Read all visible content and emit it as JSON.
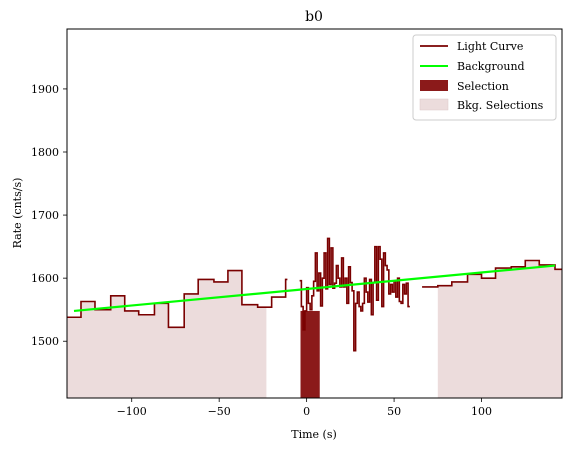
{
  "chart_data": {
    "type": "line",
    "title": "b0",
    "xlabel": "Time (s)",
    "ylabel": "Rate (cnts/s)",
    "xlim": [
      -137,
      146
    ],
    "ylim": [
      1410,
      1995
    ],
    "xticks": [
      -100,
      -50,
      0,
      50,
      100
    ],
    "xtick_labels": [
      "−100",
      "−50",
      "0",
      "50",
      "100"
    ],
    "yticks": [
      1500,
      1600,
      1700,
      1800,
      1900
    ],
    "ytick_labels": [
      "1500",
      "1600",
      "1700",
      "1800",
      "1900"
    ],
    "legend_position": "top-right",
    "colors": {
      "light_curve": "#7a0000",
      "background": "#00ff00",
      "selection": "#8b1a1a",
      "bkg_selection": "#ecdcdc"
    },
    "series": [
      {
        "name": "Light Curve",
        "kind": "step",
        "points": [
          [
            -137,
            1538
          ],
          [
            -129,
            1563
          ],
          [
            -121,
            1550
          ],
          [
            -112,
            1572
          ],
          [
            -104,
            1548
          ],
          [
            -96,
            1542
          ],
          [
            -87,
            1560
          ],
          [
            -79,
            1522
          ],
          [
            -70,
            1575
          ],
          [
            -62,
            1598
          ],
          [
            -53,
            1594
          ],
          [
            -45,
            1612
          ],
          [
            -37,
            1558
          ],
          [
            -28,
            1554
          ],
          [
            -20,
            1570
          ],
          [
            -12,
            1598
          ]
        ],
        "x_end": -11
      },
      {
        "name": "Light Curve",
        "kind": "step",
        "points": [
          [
            -4,
            1596
          ],
          [
            -3,
            1555
          ],
          [
            -2,
            1518
          ],
          [
            -1,
            1548
          ],
          [
            0,
            1585
          ],
          [
            1,
            1560
          ],
          [
            2,
            1550
          ],
          [
            3,
            1572
          ],
          [
            4,
            1595
          ],
          [
            5,
            1640
          ],
          [
            6,
            1580
          ],
          [
            7,
            1608
          ],
          [
            8,
            1556
          ],
          [
            9,
            1600
          ],
          [
            10,
            1640
          ],
          [
            11,
            1583
          ],
          [
            12,
            1663
          ],
          [
            13,
            1590
          ],
          [
            14,
            1648
          ],
          [
            15,
            1584
          ],
          [
            16,
            1592
          ],
          [
            17,
            1620
          ],
          [
            18,
            1600
          ],
          [
            19,
            1586
          ],
          [
            20,
            1632
          ],
          [
            21,
            1586
          ],
          [
            22,
            1600
          ],
          [
            23,
            1560
          ],
          [
            24,
            1618
          ],
          [
            25,
            1593
          ],
          [
            26,
            1580
          ],
          [
            27,
            1485
          ],
          [
            28,
            1560
          ],
          [
            29,
            1578
          ],
          [
            30,
            1555
          ],
          [
            31,
            1548
          ],
          [
            32,
            1560
          ],
          [
            33,
            1600
          ],
          [
            34,
            1578
          ],
          [
            35,
            1562
          ],
          [
            36,
            1598
          ],
          [
            37,
            1542
          ],
          [
            38,
            1593
          ],
          [
            39,
            1650
          ],
          [
            40,
            1565
          ],
          [
            41,
            1650
          ],
          [
            42,
            1630
          ],
          [
            43,
            1555
          ],
          [
            44,
            1640
          ],
          [
            45,
            1620
          ],
          [
            46,
            1613
          ],
          [
            47,
            1575
          ],
          [
            48,
            1590
          ],
          [
            49,
            1578
          ],
          [
            50,
            1595
          ],
          [
            51,
            1570
          ],
          [
            52,
            1600
          ],
          [
            53,
            1563
          ],
          [
            54,
            1560
          ],
          [
            55,
            1590
          ],
          [
            56,
            1575
          ],
          [
            57,
            1592
          ],
          [
            58,
            1555
          ]
        ],
        "x_end": 59
      },
      {
        "name": "Light Curve",
        "kind": "step",
        "points": [
          [
            66,
            1586
          ],
          [
            75,
            1588
          ],
          [
            83,
            1594
          ],
          [
            92,
            1606
          ],
          [
            100,
            1600
          ],
          [
            108,
            1616
          ],
          [
            117,
            1618
          ],
          [
            125,
            1628
          ],
          [
            133,
            1621
          ],
          [
            142,
            1614
          ]
        ],
        "x_end": 146
      },
      {
        "name": "Background",
        "kind": "line",
        "points": [
          [
            -133,
            1548
          ],
          [
            142,
            1620
          ]
        ]
      }
    ],
    "selection": {
      "name": "Selection",
      "x_range": [
        -3.5,
        7.5
      ],
      "y_top": 1548
    },
    "bkg_selections": {
      "name": "Bkg. Selections",
      "ranges": [
        [
          -137,
          -23
        ],
        [
          75,
          146
        ]
      ],
      "edge_points": [
        [
          -23,
          1555
        ],
        [
          75,
          1580
        ]
      ]
    }
  }
}
